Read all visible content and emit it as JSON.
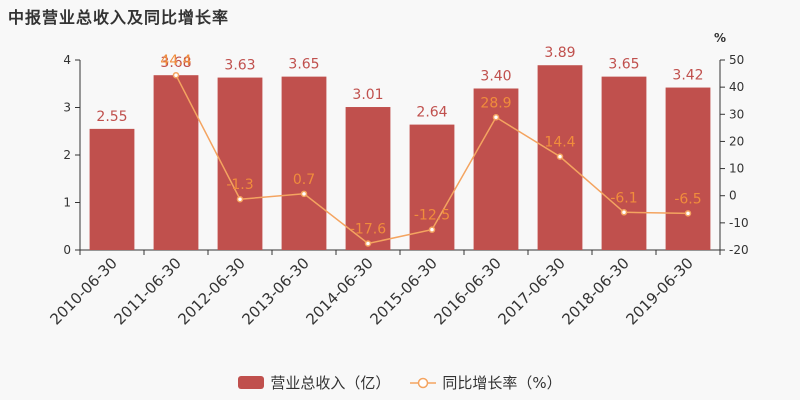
{
  "title": "中报营业总收入及同比增长率",
  "colors": {
    "bar": "#c0504d",
    "line": "#f4a460",
    "bar_label": "#c0504d",
    "line_label": "#f08c3c",
    "axis": "#333333",
    "background": "#f8f8f8"
  },
  "legend": {
    "bar_label": "营业总收入（亿）",
    "line_label": "同比增长率（%）"
  },
  "chart_data": {
    "type": "bar",
    "categories": [
      "2010-06-30",
      "2011-06-30",
      "2012-06-30",
      "2013-06-30",
      "2014-06-30",
      "2015-06-30",
      "2016-06-30",
      "2017-06-30",
      "2018-06-30",
      "2019-06-30"
    ],
    "series": [
      {
        "name": "营业总收入（亿）",
        "type": "bar",
        "axis": "left",
        "values": [
          2.55,
          3.68,
          3.63,
          3.65,
          3.01,
          2.64,
          3.4,
          3.89,
          3.65,
          3.42
        ],
        "labels": [
          "2.55",
          "3.68",
          "3.63",
          "3.65",
          "3.01",
          "2.64",
          "3.40",
          "3.89",
          "3.65",
          "3.42"
        ]
      },
      {
        "name": "同比增长率（%）",
        "type": "line",
        "axis": "right",
        "values": [
          null,
          44.4,
          -1.3,
          0.7,
          -17.6,
          -12.5,
          28.9,
          14.4,
          -6.1,
          -6.5
        ],
        "labels": [
          "",
          "44.4",
          "-1.3",
          "0.7",
          "-17.6",
          "-12.5",
          "28.9",
          "14.4",
          "-6.1",
          "-6.5"
        ]
      }
    ],
    "y_left": {
      "ylim": [
        0,
        4
      ],
      "ticks": [
        "0",
        "1",
        "2",
        "3",
        "4"
      ]
    },
    "y_right": {
      "ylim": [
        -20,
        50
      ],
      "ticks": [
        "-20",
        "-10",
        "0",
        "10",
        "20",
        "30",
        "40",
        "50"
      ],
      "unit": "%"
    },
    "legend_position": "bottom",
    "grid": false
  }
}
